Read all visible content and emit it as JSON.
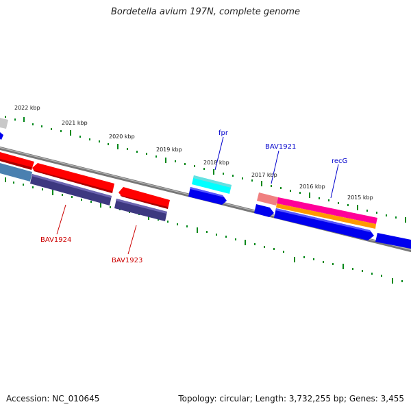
{
  "title": "Bordetella avium 197N, complete genome",
  "footer": {
    "accession": "Accession: NC_010645",
    "stats": "Topology: circular; Length: 3,732,255 bp; Genes: 3,455"
  },
  "ruler_labels": [
    "2022 kbp",
    "2021 kbp",
    "2020 kbp",
    "2019 kbp",
    "2018 kbp",
    "2017 kbp",
    "2016 kbp",
    "2015 kbp"
  ],
  "gene_labels": {
    "fpr": "fpr",
    "bav1921": "BAV1921",
    "recg": "recG",
    "bav1924": "BAV1924",
    "bav1923": "BAV1923"
  },
  "colors": {
    "forward_red": "#ff0000",
    "reverse_blue": "#0000ee",
    "slate": "#3d3880",
    "cyan": "#00ffff",
    "magenta": "#ff0099",
    "orange": "#ff9900",
    "pink": "#f08080",
    "steelblue": "#4a80b0",
    "tick_green": "#00881a",
    "backbone": "#888888"
  }
}
